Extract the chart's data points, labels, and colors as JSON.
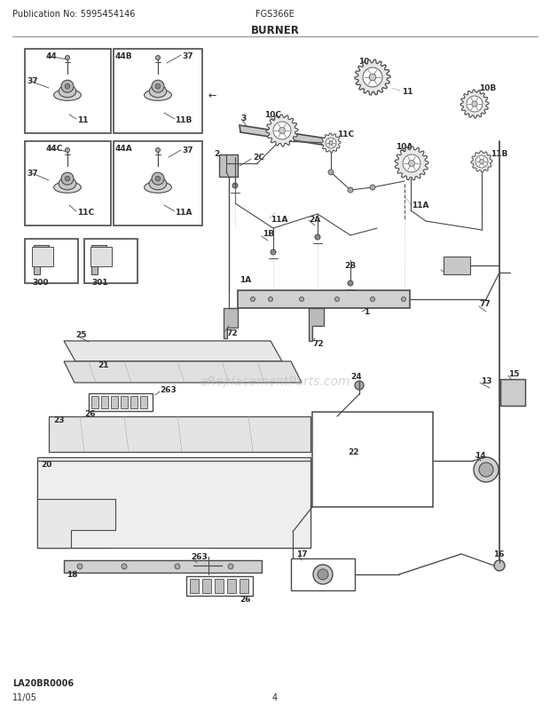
{
  "title": "BURNER",
  "pub_no": "Publication No: 5995454146",
  "model": "FGS366E",
  "date": "11/05",
  "page": "4",
  "watermark": "eReplacementParts.com",
  "diagram_label": "LA20BR0006",
  "bg_color": "#ffffff",
  "line_color": "#4a4a4a",
  "text_color": "#2a2a2a",
  "light_gray": "#d8d8d8",
  "mid_gray": "#aaaaaa",
  "dark_gray": "#666666"
}
